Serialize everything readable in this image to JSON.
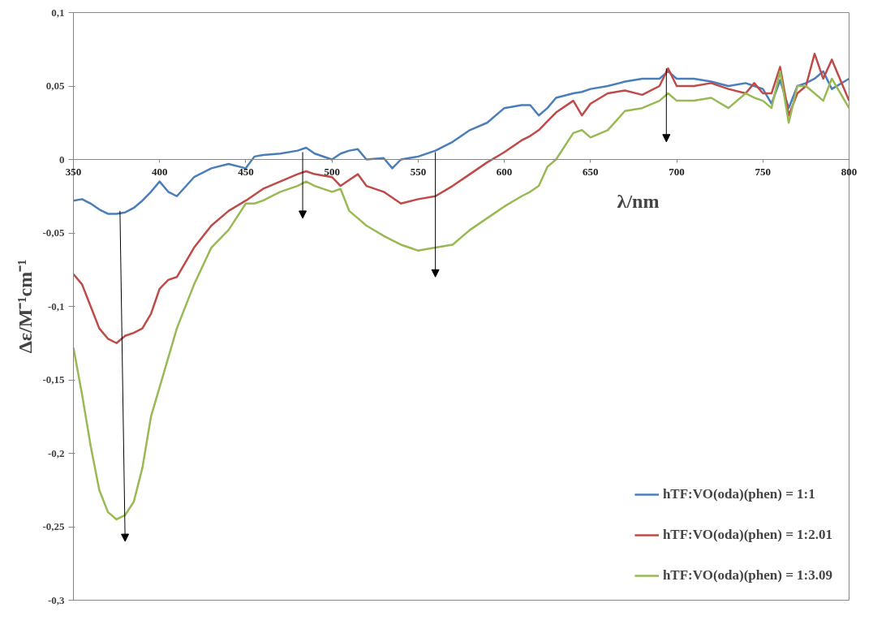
{
  "chart_data": {
    "type": "line",
    "xlabel": "λ/nm",
    "ylabel": "Δε/M⁻¹cm⁻¹",
    "xlim": [
      350,
      800
    ],
    "xticks": [
      350,
      400,
      450,
      500,
      550,
      600,
      650,
      700,
      750,
      800
    ],
    "ylim": [
      -0.3,
      0.1
    ],
    "yticks": [
      {
        "value": -0.3,
        "label": "-0,3"
      },
      {
        "value": -0.25,
        "label": "-0,25"
      },
      {
        "value": -0.2,
        "label": "-0,2"
      },
      {
        "value": -0.15,
        "label": "-0,15"
      },
      {
        "value": -0.1,
        "label": "-0,1"
      },
      {
        "value": -0.05,
        "label": "-0,05"
      },
      {
        "value": 0,
        "label": "0"
      },
      {
        "value": 0.05,
        "label": "0,05"
      },
      {
        "value": 0.1,
        "label": "0,1"
      }
    ],
    "grid": false,
    "legend": "bottom right",
    "marker": "none",
    "line_style": "solid",
    "x": [
      350,
      355,
      360,
      365,
      370,
      375,
      380,
      385,
      390,
      395,
      400,
      405,
      410,
      420,
      430,
      440,
      450,
      455,
      460,
      470,
      480,
      485,
      490,
      500,
      505,
      510,
      515,
      520,
      530,
      535,
      540,
      550,
      560,
      570,
      580,
      590,
      600,
      610,
      615,
      620,
      625,
      630,
      640,
      645,
      650,
      660,
      670,
      680,
      690,
      695,
      700,
      710,
      720,
      730,
      740,
      745,
      750,
      755,
      760,
      765,
      770,
      775,
      780,
      785,
      790,
      800
    ],
    "series": [
      {
        "name": "hTF:VO(oda)(phen) = 1:1",
        "color": "#4a7ebb",
        "values": [
          -0.028,
          -0.027,
          -0.03,
          -0.034,
          -0.037,
          -0.037,
          -0.036,
          -0.033,
          -0.028,
          -0.022,
          -0.015,
          -0.022,
          -0.025,
          -0.012,
          -0.006,
          -0.003,
          -0.006,
          0.002,
          0.003,
          0.004,
          0.006,
          0.008,
          0.004,
          0.0,
          0.004,
          0.006,
          0.007,
          0.0,
          0.001,
          -0.006,
          0.0,
          0.002,
          0.006,
          0.012,
          0.02,
          0.025,
          0.035,
          0.037,
          0.037,
          0.03,
          0.035,
          0.042,
          0.045,
          0.046,
          0.048,
          0.05,
          0.053,
          0.055,
          0.055,
          0.06,
          0.055,
          0.055,
          0.053,
          0.05,
          0.052,
          0.05,
          0.048,
          0.038,
          0.054,
          0.035,
          0.05,
          0.052,
          0.055,
          0.06,
          0.048,
          0.055
        ]
      },
      {
        "name": "hTF:VO(oda)(phen) = 1:2.01",
        "color": "#be4b48",
        "values": [
          -0.078,
          -0.085,
          -0.1,
          -0.115,
          -0.122,
          -0.125,
          -0.12,
          -0.118,
          -0.115,
          -0.105,
          -0.088,
          -0.082,
          -0.08,
          -0.06,
          -0.045,
          -0.035,
          -0.028,
          -0.024,
          -0.02,
          -0.015,
          -0.01,
          -0.008,
          -0.01,
          -0.012,
          -0.018,
          -0.014,
          -0.01,
          -0.018,
          -0.022,
          -0.026,
          -0.03,
          -0.027,
          -0.025,
          -0.018,
          -0.01,
          -0.002,
          0.005,
          0.013,
          0.016,
          0.02,
          0.026,
          0.032,
          0.04,
          0.03,
          0.038,
          0.045,
          0.047,
          0.044,
          0.05,
          0.062,
          0.05,
          0.05,
          0.052,
          0.048,
          0.045,
          0.052,
          0.045,
          0.045,
          0.063,
          0.03,
          0.045,
          0.05,
          0.072,
          0.055,
          0.068,
          0.04
        ]
      },
      {
        "name": "hTF:VO(oda)(phen) = 1:3.09",
        "color": "#98b954",
        "values": [
          -0.128,
          -0.16,
          -0.195,
          -0.225,
          -0.24,
          -0.245,
          -0.242,
          -0.233,
          -0.21,
          -0.175,
          -0.155,
          -0.135,
          -0.115,
          -0.085,
          -0.06,
          -0.048,
          -0.03,
          -0.03,
          -0.028,
          -0.022,
          -0.018,
          -0.015,
          -0.018,
          -0.022,
          -0.02,
          -0.035,
          -0.04,
          -0.045,
          -0.052,
          -0.055,
          -0.058,
          -0.062,
          -0.06,
          -0.058,
          -0.048,
          -0.04,
          -0.032,
          -0.025,
          -0.022,
          -0.018,
          -0.005,
          0.0,
          0.018,
          0.02,
          0.015,
          0.02,
          0.033,
          0.035,
          0.04,
          0.045,
          0.04,
          0.04,
          0.042,
          0.035,
          0.045,
          0.042,
          0.04,
          0.035,
          0.06,
          0.025,
          0.05,
          0.05,
          0.045,
          0.04,
          0.055,
          0.035
        ]
      }
    ]
  }
}
